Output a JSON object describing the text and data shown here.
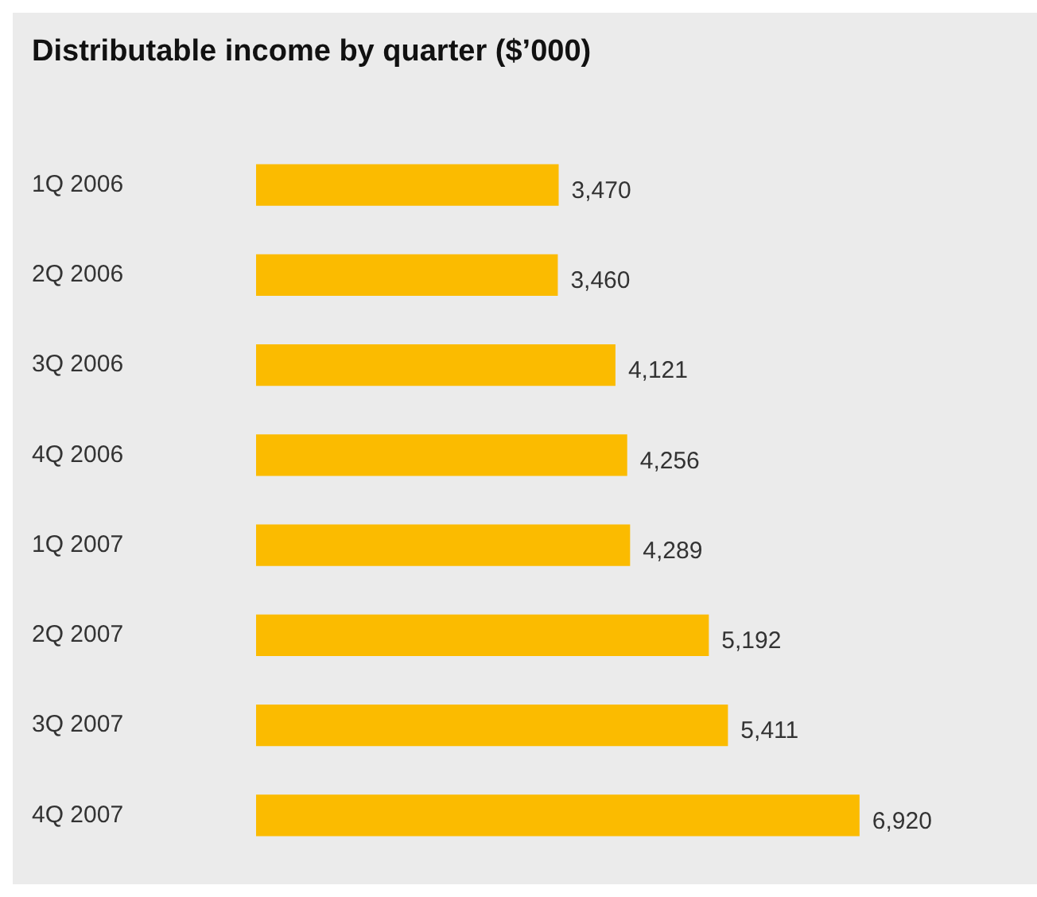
{
  "chart_data": {
    "type": "bar",
    "orientation": "horizontal",
    "title": "Distributable income by quarter ($’000)",
    "categories": [
      "1Q 2006",
      "2Q 2006",
      "3Q 2006",
      "4Q 2006",
      "1Q 2007",
      "2Q 2007",
      "3Q 2007",
      "4Q 2007"
    ],
    "values": [
      3470,
      3460,
      4121,
      4256,
      4289,
      5192,
      5411,
      6920
    ],
    "value_labels": [
      "3,470",
      "3,460",
      "4,121",
      "4,256",
      "4,289",
      "5,192",
      "5,411",
      "6,920"
    ],
    "color": "#fbbb00",
    "tick_labels": "y"
  }
}
